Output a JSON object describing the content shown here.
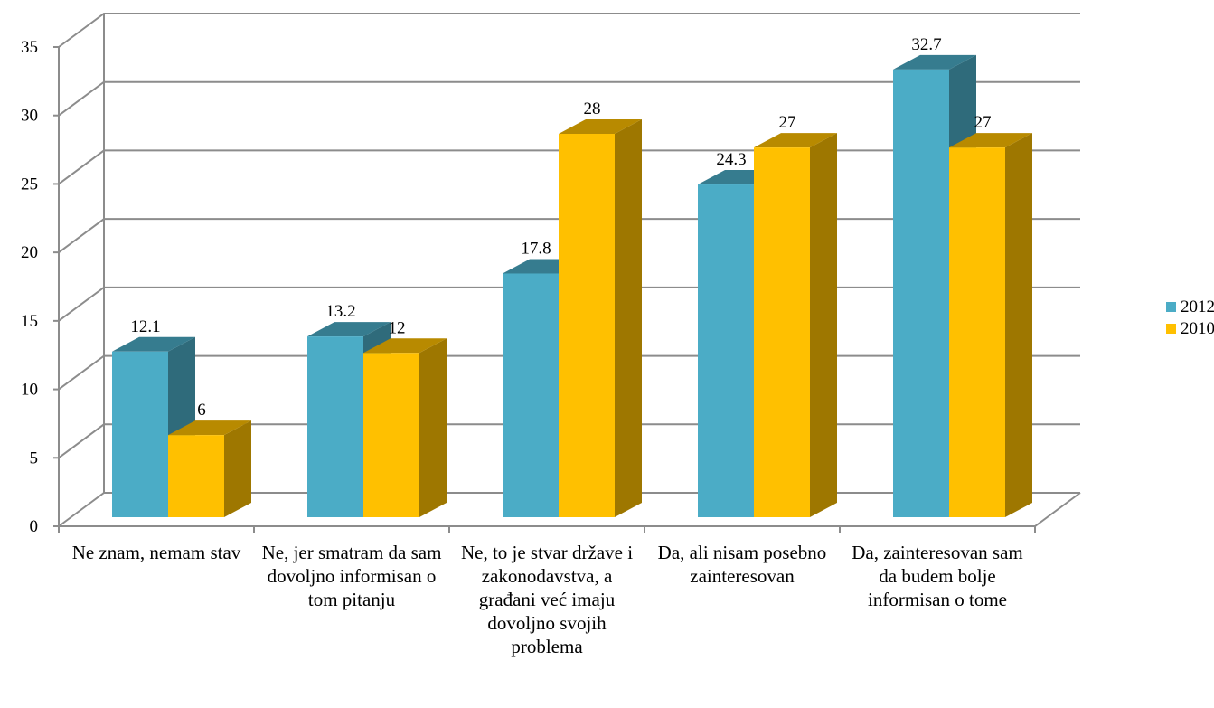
{
  "chart_data": {
    "type": "bar3d",
    "categories": [
      "Ne znam, nemam stav",
      "Ne, jer smatram da sam dovoljno informisan o tom pitanju",
      "Ne, to je stvar države i zakonodavstva, a građani već imaju dovoljno svojih problema",
      "Da, ali nisam posebno zainteresovan",
      "Da, zainteresovan sam da budem bolje informisan o tome"
    ],
    "series": [
      {
        "name": "2012",
        "color": "#4bacc6",
        "values": [
          12.1,
          13.2,
          17.8,
          24.3,
          32.7
        ]
      },
      {
        "name": "2010",
        "color": "#ffc000",
        "values": [
          6,
          12,
          28,
          27,
          27
        ]
      }
    ],
    "ylim": [
      0,
      35
    ],
    "yticks": [
      0,
      5,
      10,
      15,
      20,
      25,
      30,
      35
    ],
    "grid": true,
    "legend": "right"
  }
}
